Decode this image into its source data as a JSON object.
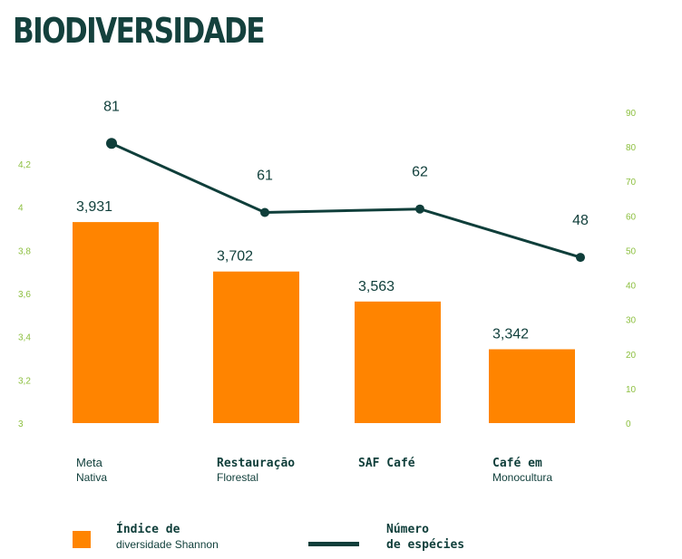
{
  "title": "BIODIVERSIDADE",
  "colors": {
    "bar": "#ff8400",
    "line": "#0f3e3a",
    "axis_left": "#8cbf3f",
    "axis_right": "#8cbf3f",
    "title": "#14413d"
  },
  "chart_data": {
    "type": "bar",
    "categories": [
      {
        "line1": "Meta",
        "line2": "Nativa"
      },
      {
        "line1": "Restauração",
        "line2": "Florestal"
      },
      {
        "line1": "SAF Café",
        "line2": ""
      },
      {
        "line1": "Café em",
        "line2": "Monocultura"
      }
    ],
    "series": [
      {
        "name": "Índice de diversidade Shannon",
        "type": "bar",
        "axis": "left",
        "values": [
          3.931,
          3.702,
          3.563,
          3.342
        ],
        "labels": [
          "3,931",
          "3,702",
          "3,563",
          "3,342"
        ]
      },
      {
        "name": "Número de espécies",
        "type": "line",
        "axis": "right",
        "values": [
          81,
          61,
          62,
          48
        ],
        "labels": [
          "81",
          "61",
          "62",
          "48"
        ]
      }
    ],
    "y_left": {
      "min": 3,
      "max": 4.2,
      "ticks": [
        "3",
        "3,2",
        "3,4",
        "3,6",
        "3,8",
        "4",
        "4,2"
      ],
      "tick_values": [
        3,
        3.2,
        3.4,
        3.6,
        3.8,
        4,
        4.2
      ]
    },
    "y_right": {
      "min": 0,
      "max": 90,
      "ticks": [
        "0",
        "10",
        "20",
        "30",
        "40",
        "50",
        "60",
        "70",
        "80",
        "90"
      ],
      "tick_values": [
        0,
        10,
        20,
        30,
        40,
        50,
        60,
        70,
        80,
        90
      ]
    },
    "grid": false,
    "legend": {
      "position": "bottom",
      "bar": {
        "line1": "Índice de",
        "line2": "diversidade Shannon"
      },
      "line": {
        "line1": "Número",
        "line2": "de espécies"
      }
    }
  }
}
